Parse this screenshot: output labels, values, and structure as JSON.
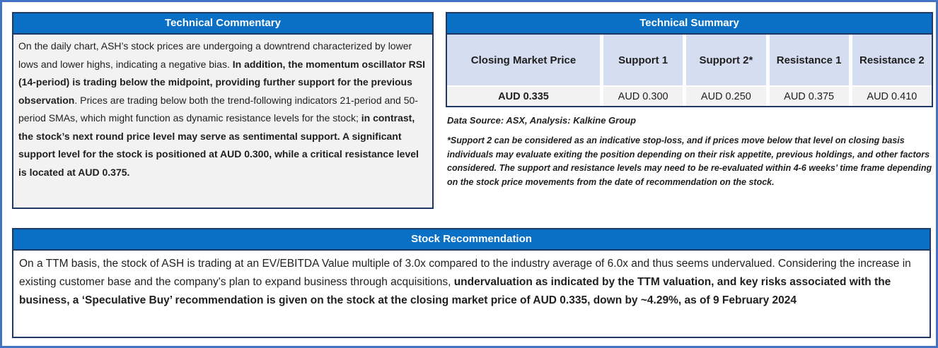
{
  "colors": {
    "frame_border": "#4472C4",
    "panel_border": "#1F3864",
    "title_bar": "#0A70C6",
    "title_text": "#FFFFFF",
    "table_header_fill": "#D5DDF0",
    "gray_fill": "#F2F2F2",
    "body_text": "#1F1F1F"
  },
  "commentary": {
    "title": "Technical Commentary",
    "runs": [
      {
        "text": "On the daily chart, ASH’s stock prices are undergoing a downtrend characterized by lower lows and lower highs, indicating a negative bias. ",
        "bold": false
      },
      {
        "text": "In addition, the momentum oscillator RSI (14-period) is trading below the midpoint, providing further support for the previous observation",
        "bold": true
      },
      {
        "text": ". Prices are trading below both the trend-following indicators 21-period and 50-period SMAs, which might function as dynamic resistance levels for the stock; ",
        "bold": false
      },
      {
        "text": "in contrast, the stock’s next round price level may serve as sentimental support. A significant support level for the stock is positioned at AUD 0.300, while a critical resistance level is located at AUD 0.375.",
        "bold": true
      }
    ]
  },
  "summary": {
    "title": "Technical Summary",
    "columns": [
      "Closing Market Price",
      "Support 1",
      "Support 2*",
      "Resistance 1",
      "Resistance 2"
    ],
    "values": [
      "AUD 0.335",
      "AUD 0.300",
      "AUD 0.250",
      "AUD 0.375",
      "AUD 0.410"
    ],
    "data_source": "Data Source: ASX, Analysis: Kalkine Group",
    "footnote": "*Support 2 can be considered as an indicative stop-loss, and if prices move below that level on closing basis individuals may evaluate exiting the position depending on their risk appetite, previous holdings, and other factors considered. The support and resistance levels may need to be re-evaluated within 4-6 weeks’ time frame depending on the stock price movements from the date of recommendation on the stock."
  },
  "recommendation": {
    "title": "Stock Recommendation",
    "runs": [
      {
        "text": "On a TTM basis, the stock of ASH is trading at an EV/EBITDA Value multiple of 3.0x compared to the industry average of 6.0x and thus seems undervalued. Considering the increase in existing customer base and the company's plan to expand business through acquisitions, ",
        "bold": false
      },
      {
        "text": "undervaluation as indicated by the TTM valuation, and key risks associated with the business, a ‘Speculative Buy’ recommendation is given on the stock at the closing market price of AUD 0.335, down by ~4.29%, as of 9 February 2024",
        "bold": true
      }
    ]
  }
}
